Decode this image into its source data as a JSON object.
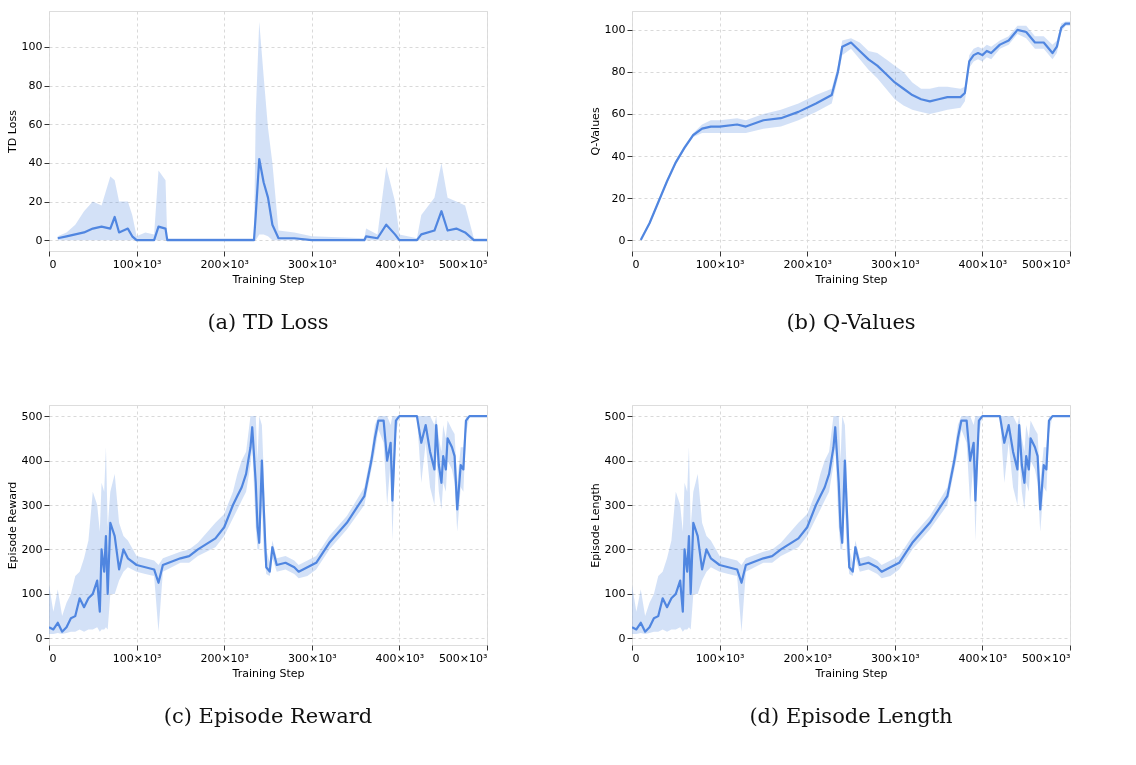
{
  "chart_data": [
    {
      "type": "line",
      "title": "(a) TD Loss",
      "xlabel": "Training Step",
      "ylabel": "TD Loss",
      "xlim": [
        0,
        500000
      ],
      "ylim": [
        -5.6,
        118.6
      ],
      "grid": true,
      "xticks": [
        {
          "value": 0,
          "label": "0"
        },
        {
          "value": 100000,
          "label": "100×10³"
        },
        {
          "value": 200000,
          "label": "200×10³"
        },
        {
          "value": 300000,
          "label": "300×10³"
        },
        {
          "value": 400000,
          "label": "400×10³"
        },
        {
          "value": 500000,
          "label": "500×10³"
        }
      ],
      "yticks": [
        0,
        20,
        40,
        60,
        80,
        100
      ],
      "series": [
        {
          "color": "#5086e0",
          "x": [
            10000,
            20000,
            30000,
            40000,
            50000,
            60000,
            70000,
            75000,
            80000,
            90000,
            95000,
            100000,
            110000,
            120000,
            125000,
            133000,
            135000,
            150000,
            200000,
            234000,
            236000,
            240000,
            245000,
            250000,
            255000,
            262000,
            280000,
            300000,
            360000,
            362000,
            375000,
            385000,
            395000,
            400000,
            420000,
            425000,
            440000,
            448000,
            455000,
            465000,
            475000,
            485000,
            500000
          ],
          "values": [
            1,
            2,
            3,
            4,
            6,
            7,
            6,
            12,
            4,
            6,
            2,
            0,
            0,
            0,
            7,
            6,
            0,
            0,
            0,
            0,
            13,
            42,
            30,
            22,
            8,
            1,
            1,
            0,
            0,
            2,
            1,
            8,
            3,
            0,
            0,
            3,
            5,
            15,
            5,
            6,
            4,
            0,
            0
          ],
          "lower": [
            0,
            0,
            0,
            0,
            0,
            0,
            0,
            0,
            0,
            0,
            0,
            0,
            0,
            0,
            0,
            0,
            0,
            0,
            0,
            0,
            0,
            3,
            3,
            2,
            0,
            0,
            0,
            0,
            0,
            0,
            0,
            0,
            0,
            0,
            0,
            0,
            0,
            0,
            0,
            0,
            0,
            0,
            0
          ],
          "upper": [
            2,
            4,
            8,
            15,
            20,
            18,
            33,
            31,
            20,
            20,
            13,
            2,
            4,
            3,
            36,
            31,
            1,
            1,
            1,
            1,
            65,
            113,
            85,
            58,
            40,
            5,
            4,
            2,
            1,
            6,
            3,
            38,
            20,
            3,
            1,
            13,
            22,
            40,
            22,
            20,
            18,
            1,
            1
          ]
        }
      ]
    },
    {
      "type": "line",
      "title": "(b) Q-Values",
      "xlabel": "Training Step",
      "ylabel": "Q-Values",
      "xlim": [
        0,
        500000
      ],
      "ylim": [
        -5.2,
        109
      ],
      "grid": true,
      "xticks": [
        {
          "value": 0,
          "label": "0"
        },
        {
          "value": 100000,
          "label": "100×10³"
        },
        {
          "value": 200000,
          "label": "200×10³"
        },
        {
          "value": 300000,
          "label": "300×10³"
        },
        {
          "value": 400000,
          "label": "400×10³"
        },
        {
          "value": 500000,
          "label": "500×10³"
        }
      ],
      "yticks": [
        0,
        20,
        40,
        60,
        80,
        100
      ],
      "series": [
        {
          "color": "#5086e0",
          "x": [
            10000,
            20000,
            30000,
            40000,
            50000,
            60000,
            70000,
            80000,
            90000,
            100000,
            120000,
            130000,
            150000,
            170000,
            190000,
            210000,
            228000,
            235000,
            240000,
            250000,
            260000,
            270000,
            280000,
            290000,
            300000,
            310000,
            320000,
            330000,
            340000,
            350000,
            360000,
            375000,
            380000,
            385000,
            390000,
            395000,
            400000,
            405000,
            410000,
            420000,
            430000,
            440000,
            450000,
            460000,
            470000,
            480000,
            485000,
            490000,
            495000,
            500000
          ],
          "values": [
            0,
            8,
            18,
            28,
            37,
            44,
            50,
            53,
            54,
            54,
            55,
            54,
            57,
            58,
            61,
            65,
            69,
            80,
            92,
            94,
            90,
            86,
            83,
            79,
            75,
            72,
            69,
            67,
            66,
            67,
            68,
            68,
            70,
            85,
            88,
            89,
            88,
            90,
            89,
            93,
            95,
            100,
            99,
            94,
            94,
            89,
            92,
            101,
            103,
            103
          ],
          "lower": [
            0,
            7,
            17,
            27,
            36,
            43,
            49,
            51,
            51,
            51,
            51,
            51,
            53,
            54,
            57,
            61,
            65,
            77,
            88,
            91,
            86,
            81,
            77,
            72,
            67,
            64,
            62,
            61,
            60,
            61,
            62,
            63,
            66,
            82,
            85,
            86,
            85,
            87,
            86,
            91,
            93,
            98,
            96,
            91,
            91,
            86,
            89,
            99,
            102,
            102
          ],
          "upper": [
            1,
            9,
            19,
            29,
            38,
            45,
            51,
            55,
            57,
            57,
            58,
            57,
            60,
            62,
            65,
            69,
            72,
            83,
            95,
            96,
            94,
            90,
            89,
            86,
            83,
            80,
            75,
            72,
            72,
            73,
            73,
            72,
            73,
            88,
            91,
            92,
            91,
            93,
            92,
            95,
            97,
            102,
            102,
            97,
            97,
            93,
            95,
            103,
            104,
            104
          ]
        }
      ]
    },
    {
      "type": "line",
      "title": "(c) Episode Reward",
      "xlabel": "Training Step",
      "ylabel": "Episode Reward",
      "xlim": [
        0,
        500000
      ],
      "ylim": [
        -15,
        525
      ],
      "grid": true,
      "xticks": [
        {
          "value": 0,
          "label": "0"
        },
        {
          "value": 100000,
          "label": "100×10³"
        },
        {
          "value": 200000,
          "label": "200×10³"
        },
        {
          "value": 300000,
          "label": "300×10³"
        },
        {
          "value": 400000,
          "label": "400×10³"
        },
        {
          "value": 500000,
          "label": "500×10³"
        }
      ],
      "yticks": [
        0,
        100,
        200,
        300,
        400,
        500
      ],
      "series": [
        {
          "color": "#5086e0",
          "x": [
            0,
            5000,
            10000,
            15000,
            20000,
            25000,
            30000,
            35000,
            40000,
            45000,
            50000,
            55000,
            58000,
            60000,
            63000,
            65000,
            67000,
            70000,
            75000,
            80000,
            85000,
            90000,
            100000,
            110000,
            120000,
            125000,
            130000,
            150000,
            160000,
            170000,
            190000,
            200000,
            210000,
            215000,
            220000,
            225000,
            230000,
            232000,
            236000,
            238000,
            240000,
            243000,
            245000,
            248000,
            252000,
            255000,
            260000,
            270000,
            280000,
            285000,
            295000,
            305000,
            320000,
            340000,
            360000,
            368000,
            372000,
            376000,
            382000,
            386000,
            390000,
            392000,
            396000,
            400000,
            420000,
            425000,
            430000,
            435000,
            440000,
            442000,
            445000,
            448000,
            450000,
            453000,
            455000,
            460000,
            463000,
            466000,
            470000,
            473000,
            476000,
            480000,
            500000
          ],
          "values": [
            25,
            20,
            35,
            15,
            25,
            45,
            50,
            90,
            70,
            90,
            100,
            130,
            60,
            200,
            150,
            230,
            100,
            260,
            230,
            155,
            200,
            180,
            165,
            160,
            155,
            125,
            165,
            180,
            185,
            200,
            225,
            250,
            300,
            320,
            340,
            370,
            430,
            475,
            350,
            250,
            215,
            400,
            300,
            160,
            150,
            205,
            165,
            170,
            160,
            150,
            160,
            170,
            215,
            260,
            320,
            400,
            450,
            490,
            490,
            400,
            440,
            310,
            490,
            500,
            500,
            440,
            480,
            420,
            380,
            480,
            390,
            350,
            410,
            380,
            450,
            430,
            410,
            290,
            390,
            380,
            490,
            500,
            500
          ],
          "lower": [
            10,
            10,
            12,
            10,
            12,
            15,
            15,
            20,
            15,
            20,
            20,
            25,
            15,
            20,
            20,
            25,
            20,
            100,
            100,
            130,
            150,
            160,
            150,
            145,
            140,
            15,
            150,
            170,
            170,
            185,
            205,
            230,
            270,
            290,
            310,
            330,
            390,
            430,
            250,
            200,
            200,
            300,
            200,
            145,
            140,
            180,
            150,
            155,
            145,
            135,
            140,
            155,
            200,
            245,
            300,
            380,
            420,
            470,
            440,
            300,
            400,
            220,
            460,
            500,
            500,
            350,
            440,
            340,
            300,
            420,
            330,
            290,
            350,
            330,
            400,
            380,
            350,
            240,
            340,
            330,
            460,
            500,
            500
          ],
          "upper": [
            120,
            60,
            110,
            50,
            80,
            100,
            140,
            150,
            180,
            220,
            330,
            300,
            240,
            350,
            330,
            430,
            250,
            330,
            370,
            260,
            230,
            220,
            185,
            180,
            175,
            165,
            180,
            195,
            200,
            215,
            260,
            280,
            330,
            370,
            400,
            420,
            500,
            500,
            500,
            400,
            500,
            480,
            380,
            200,
            170,
            220,
            180,
            185,
            175,
            165,
            175,
            185,
            230,
            275,
            340,
            420,
            480,
            500,
            500,
            500,
            480,
            500,
            500,
            500,
            500,
            500,
            500,
            500,
            480,
            500,
            450,
            420,
            480,
            450,
            490,
            470,
            460,
            350,
            430,
            430,
            500,
            500,
            500
          ]
        }
      ]
    },
    {
      "type": "line",
      "title": "(d) Episode Length",
      "xlabel": "Training Step",
      "ylabel": "Episode Length",
      "xlim": [
        0,
        500000
      ],
      "ylim": [
        -15,
        525
      ],
      "grid": true,
      "xticks": [
        {
          "value": 0,
          "label": "0"
        },
        {
          "value": 100000,
          "label": "100×10³"
        },
        {
          "value": 200000,
          "label": "200×10³"
        },
        {
          "value": 300000,
          "label": "300×10³"
        },
        {
          "value": 400000,
          "label": "400×10³"
        },
        {
          "value": 500000,
          "label": "500×10³"
        }
      ],
      "yticks": [
        0,
        100,
        200,
        300,
        400,
        500
      ],
      "series": [
        {
          "color": "#5086e0",
          "x": [
            0,
            5000,
            10000,
            15000,
            20000,
            25000,
            30000,
            35000,
            40000,
            45000,
            50000,
            55000,
            58000,
            60000,
            63000,
            65000,
            67000,
            70000,
            75000,
            80000,
            85000,
            90000,
            100000,
            110000,
            120000,
            125000,
            130000,
            150000,
            160000,
            170000,
            190000,
            200000,
            210000,
            215000,
            220000,
            225000,
            230000,
            232000,
            236000,
            238000,
            240000,
            243000,
            245000,
            248000,
            252000,
            255000,
            260000,
            270000,
            280000,
            285000,
            295000,
            305000,
            320000,
            340000,
            360000,
            368000,
            372000,
            376000,
            382000,
            386000,
            390000,
            392000,
            396000,
            400000,
            420000,
            425000,
            430000,
            435000,
            440000,
            442000,
            445000,
            448000,
            450000,
            453000,
            455000,
            460000,
            463000,
            466000,
            470000,
            473000,
            476000,
            480000,
            500000
          ],
          "values": [
            25,
            20,
            35,
            15,
            25,
            45,
            50,
            90,
            70,
            90,
            100,
            130,
            60,
            200,
            150,
            230,
            100,
            260,
            230,
            155,
            200,
            180,
            165,
            160,
            155,
            125,
            165,
            180,
            185,
            200,
            225,
            250,
            300,
            320,
            340,
            370,
            430,
            475,
            350,
            250,
            215,
            400,
            300,
            160,
            150,
            205,
            165,
            170,
            160,
            150,
            160,
            170,
            215,
            260,
            320,
            400,
            450,
            490,
            490,
            400,
            440,
            310,
            490,
            500,
            500,
            440,
            480,
            420,
            380,
            480,
            390,
            350,
            410,
            380,
            450,
            430,
            410,
            290,
            390,
            380,
            490,
            500,
            500
          ],
          "lower": [
            10,
            10,
            12,
            10,
            12,
            15,
            15,
            20,
            15,
            20,
            20,
            25,
            15,
            20,
            20,
            25,
            20,
            100,
            100,
            130,
            150,
            160,
            150,
            145,
            140,
            15,
            150,
            170,
            170,
            185,
            205,
            230,
            270,
            290,
            310,
            330,
            390,
            430,
            250,
            200,
            200,
            300,
            200,
            145,
            140,
            180,
            150,
            155,
            145,
            135,
            140,
            155,
            200,
            245,
            300,
            380,
            420,
            470,
            440,
            300,
            400,
            220,
            460,
            500,
            500,
            350,
            440,
            340,
            300,
            420,
            330,
            290,
            350,
            330,
            400,
            380,
            350,
            240,
            340,
            330,
            460,
            500,
            500
          ],
          "upper": [
            120,
            60,
            110,
            50,
            80,
            100,
            140,
            150,
            180,
            220,
            330,
            300,
            240,
            350,
            330,
            430,
            250,
            330,
            370,
            260,
            230,
            220,
            185,
            180,
            175,
            165,
            180,
            195,
            200,
            215,
            260,
            280,
            330,
            370,
            400,
            420,
            500,
            500,
            500,
            400,
            500,
            480,
            380,
            200,
            170,
            220,
            180,
            185,
            175,
            165,
            175,
            185,
            230,
            275,
            340,
            420,
            480,
            500,
            500,
            500,
            480,
            500,
            500,
            500,
            500,
            500,
            500,
            500,
            480,
            500,
            450,
            420,
            480,
            450,
            490,
            470,
            460,
            350,
            430,
            430,
            500,
            500,
            500
          ]
        }
      ]
    }
  ]
}
